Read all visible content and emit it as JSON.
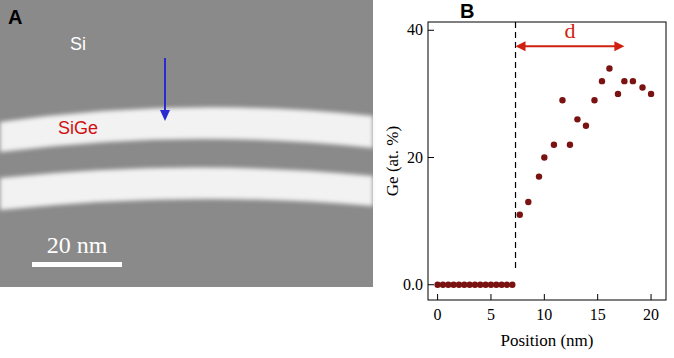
{
  "panel_a": {
    "label": "A",
    "texts": [
      {
        "text": "Si",
        "color": "#ffffff"
      },
      {
        "text": "SiGe",
        "color": "#d01010"
      }
    ],
    "scale_bar": "20 nm"
  },
  "chart_data": {
    "type": "scatter",
    "panel_label": "B",
    "x_label": "Position (nm)",
    "y_label": "Ge (at. %)",
    "x": [
      0,
      0.5,
      1,
      1.5,
      2,
      2.5,
      3,
      3.5,
      4,
      4.5,
      5,
      5.5,
      6,
      6.5,
      7,
      7.7,
      8.5,
      9.5,
      10.0,
      10.9,
      11.7,
      12.4,
      13.1,
      13.9,
      14.7,
      15.4,
      16.1,
      16.9,
      17.5,
      18.3,
      19.2,
      20.0
    ],
    "values": [
      0,
      0,
      0,
      0,
      0,
      0,
      0,
      0,
      0,
      0,
      0,
      0,
      0,
      0,
      0,
      11,
      13,
      17,
      20,
      22,
      29,
      22,
      26,
      25,
      29,
      32,
      34,
      30,
      32,
      32,
      31,
      30
    ],
    "color": "#7a1212",
    "marker": "circle",
    "xlim": [
      -0.9,
      21.4
    ],
    "ylim": [
      -2.4,
      41.3
    ],
    "xticks": [
      0,
      5,
      10,
      15,
      20
    ],
    "yticks": [
      {
        "value": 0,
        "label": "0.0"
      },
      20,
      40
    ],
    "annotations": [
      {
        "type": "vline",
        "x": 7.3,
        "y_range": [
          2.5,
          41.3
        ],
        "line_style": "dashed"
      },
      {
        "type": "arrow",
        "text": "d",
        "x": [
          7.3,
          17.5
        ],
        "y": 37.5,
        "color": "#d02010"
      }
    ]
  }
}
